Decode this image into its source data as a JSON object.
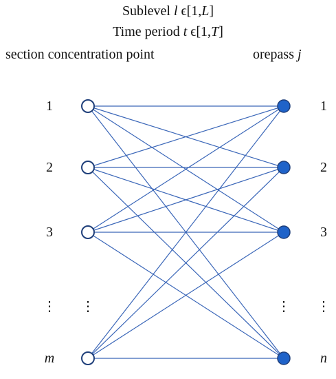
{
  "header": {
    "line1_prefix": "Sublevel ",
    "line1_var": "l",
    "line1_mid": " ϵ[1,",
    "line1_var2": "L",
    "line1_end": "]",
    "line2_prefix": "Time period ",
    "line2_var": "t",
    "line2_mid": " ϵ[1,",
    "line2_var2": "T",
    "line2_end": "]"
  },
  "left_group": {
    "title": "section concentration point"
  },
  "right_group": {
    "title_prefix": "orepass ",
    "title_var": "j"
  },
  "left_nodes": [
    {
      "label": "1",
      "italic": false
    },
    {
      "label": "2",
      "italic": false
    },
    {
      "label": "3",
      "italic": false
    },
    {
      "label": "⋮",
      "italic": false
    },
    {
      "label": "m",
      "italic": true
    }
  ],
  "right_nodes": [
    {
      "label": "1",
      "italic": false
    },
    {
      "label": "2",
      "italic": false
    },
    {
      "label": "3",
      "italic": false
    },
    {
      "label": "⋮",
      "italic": false
    },
    {
      "label": "n",
      "italic": true
    }
  ],
  "colors": {
    "edge": "#3a66b8",
    "node_stroke": "#1f3f7a",
    "left_fill": "#ffffff",
    "right_fill": "#1f63c9"
  }
}
